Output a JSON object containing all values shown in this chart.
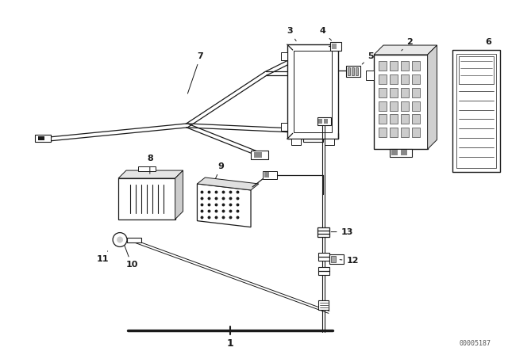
{
  "bg_color": "#ffffff",
  "line_color": "#1a1a1a",
  "part_number": "00005187",
  "fig_width": 6.4,
  "fig_height": 4.48,
  "dpi": 100
}
